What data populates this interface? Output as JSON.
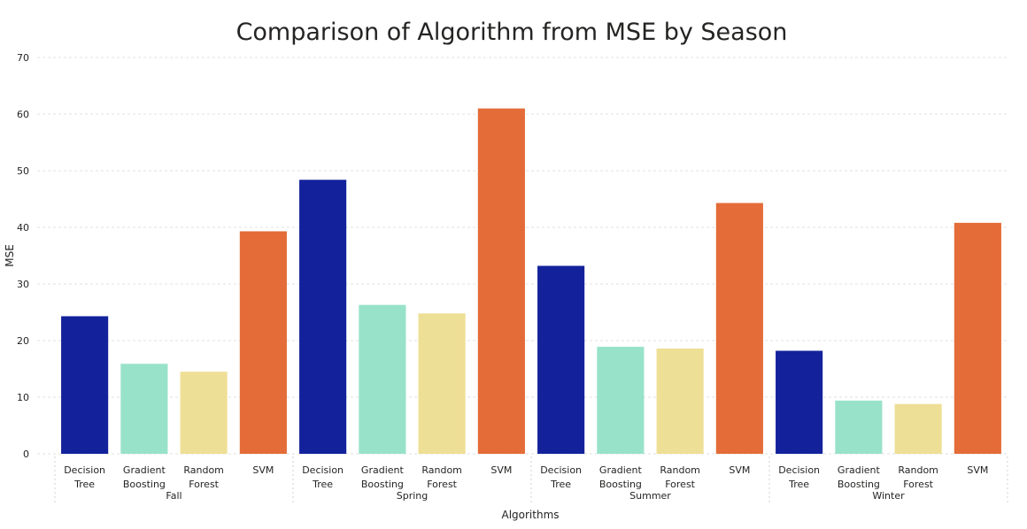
{
  "chart_data": {
    "type": "bar",
    "title": "Comparison of Algorithm from MSE by Season",
    "xlabel": "Algorithms",
    "ylabel": "MSE",
    "ylim": [
      0,
      70
    ],
    "yticks": [
      0,
      10,
      20,
      30,
      40,
      50,
      60,
      70
    ],
    "grid": true,
    "groups": [
      {
        "name": "Fall",
        "bars": [
          {
            "label": "Decision Tree",
            "value": 24.3,
            "color": "#13229B"
          },
          {
            "label": "Gradient Boosting",
            "value": 15.9,
            "color": "#98E2CA"
          },
          {
            "label": "Random Forest",
            "value": 14.5,
            "color": "#EEDF96"
          },
          {
            "label": "SVM",
            "value": 39.3,
            "color": "#E46C38"
          }
        ]
      },
      {
        "name": "Spring",
        "bars": [
          {
            "label": "Decision Tree",
            "value": 48.4,
            "color": "#13229B"
          },
          {
            "label": "Gradient Boosting",
            "value": 26.3,
            "color": "#98E2CA"
          },
          {
            "label": "Random Forest",
            "value": 24.8,
            "color": "#EEDF96"
          },
          {
            "label": "SVM",
            "value": 61.0,
            "color": "#E46C38"
          }
        ]
      },
      {
        "name": "Summer",
        "bars": [
          {
            "label": "Decision Tree",
            "value": 33.2,
            "color": "#13229B"
          },
          {
            "label": "Gradient Boosting",
            "value": 18.9,
            "color": "#98E2CA"
          },
          {
            "label": "Random Forest",
            "value": 18.6,
            "color": "#EEDF96"
          },
          {
            "label": "SVM",
            "value": 44.3,
            "color": "#E46C38"
          }
        ]
      },
      {
        "name": "Winter",
        "bars": [
          {
            "label": "Decision Tree",
            "value": 18.2,
            "color": "#13229B"
          },
          {
            "label": "Gradient Boosting",
            "value": 9.4,
            "color": "#98E2CA"
          },
          {
            "label": "Random Forest",
            "value": 8.8,
            "color": "#EEDF96"
          },
          {
            "label": "SVM",
            "value": 40.8,
            "color": "#E46C38"
          }
        ]
      }
    ]
  }
}
